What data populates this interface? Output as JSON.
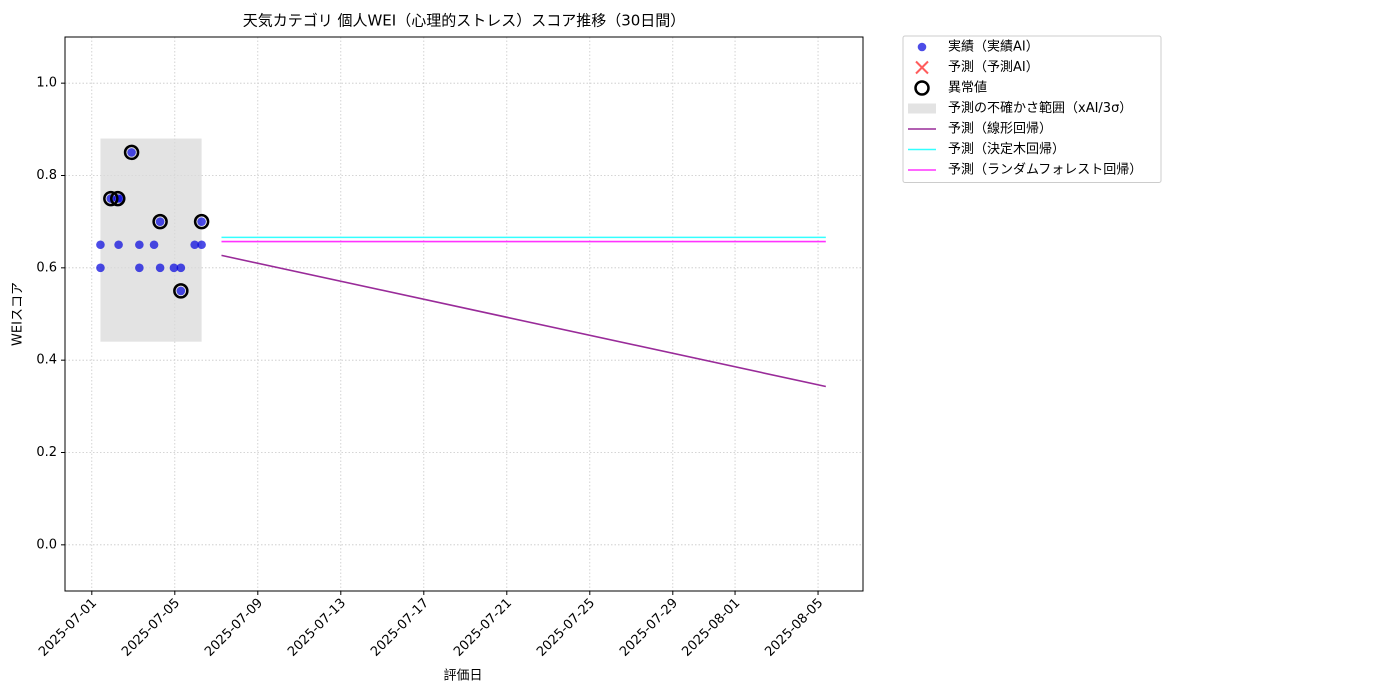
{
  "chart_data": {
    "type": "line",
    "title": "天気カテゴリ 個人WEI（心理的ストレス）スコア推移（30日間）",
    "x_label": "評価日",
    "y_label": "WEIスコア",
    "xlim": [
      "2025-06-29T17:00",
      "2025-08-07T04:00"
    ],
    "xticks": [
      "2025-07-01",
      "2025-07-05",
      "2025-07-09",
      "2025-07-13",
      "2025-07-17",
      "2025-07-21",
      "2025-07-25",
      "2025-07-29",
      "2025-08-01",
      "2025-08-05"
    ],
    "ylim": [
      -0.1,
      1.1
    ],
    "yticks": [
      {
        "value": 0,
        "label": "0.0"
      },
      0.2,
      0.4,
      0.6,
      0.8,
      {
        "value": 1,
        "label": "1.0"
      }
    ],
    "grid": true,
    "legend": "outside-upper-right",
    "series": [
      {
        "name": "実績（実績AI）",
        "type": "scatter",
        "marker": "dot",
        "color": "#0000dd",
        "x": [
          "2025-07-01T10:00",
          "2025-07-01T10:00",
          "2025-07-01T22:00",
          "2025-07-02T06:00",
          "2025-07-02T07:00",
          "2025-07-02T10:00",
          "2025-07-02T22:00",
          "2025-07-03T07:00",
          "2025-07-03T07:00",
          "2025-07-04T00:00",
          "2025-07-04T07:00",
          "2025-07-04T07:00",
          "2025-07-04T23:00",
          "2025-07-05T07:00",
          "2025-07-05T07:00",
          "2025-07-05T23:00",
          "2025-07-06T07:00",
          "2025-07-06T07:00"
        ],
        "values": [
          0.65,
          0.6,
          0.75,
          0.75,
          0.65,
          0.75,
          0.85,
          0.65,
          0.6,
          0.65,
          0.7,
          0.6,
          0.6,
          0.6,
          0.55,
          0.65,
          0.7,
          0.65
        ]
      },
      {
        "name": "予測（予測AI）",
        "type": "scatter",
        "marker": "cross",
        "color": "#ff3333",
        "x": [],
        "values": []
      },
      {
        "name": "異常値",
        "type": "scatter",
        "marker": "ring",
        "color": "#000000",
        "x": [
          "2025-07-01T22:00",
          "2025-07-02T06:00",
          "2025-07-02T22:00",
          "2025-07-04T07:00",
          "2025-07-05T07:00",
          "2025-07-06T07:00"
        ],
        "values": [
          0.75,
          0.75,
          0.85,
          0.7,
          0.55,
          0.7
        ]
      },
      {
        "name": "予測の不確かさ範囲（xAI/3σ）",
        "type": "band",
        "color": "#d9d9d9",
        "x": [
          "2025-07-01T10:00",
          "2025-07-06T07:00"
        ],
        "lower": [
          0.44,
          0.44
        ],
        "upper": [
          0.88,
          0.88
        ]
      },
      {
        "name": "予測（線形回帰）",
        "type": "line",
        "color": "#992b99",
        "x": [
          "2025-07-07T06:00",
          "2025-08-05T09:00"
        ],
        "values": [
          0.627,
          0.343
        ]
      },
      {
        "name": "予測（決定木回帰）",
        "type": "line",
        "color": "#33ffff",
        "x": [
          "2025-07-07T06:00",
          "2025-08-05T09:00"
        ],
        "values": [
          0.666,
          0.666
        ]
      },
      {
        "name": "予測（ランダムフォレスト回帰）",
        "type": "line",
        "color": "#ff33ff",
        "x": [
          "2025-07-07T06:00",
          "2025-08-05T09:00"
        ],
        "values": [
          0.657,
          0.657
        ]
      }
    ]
  }
}
